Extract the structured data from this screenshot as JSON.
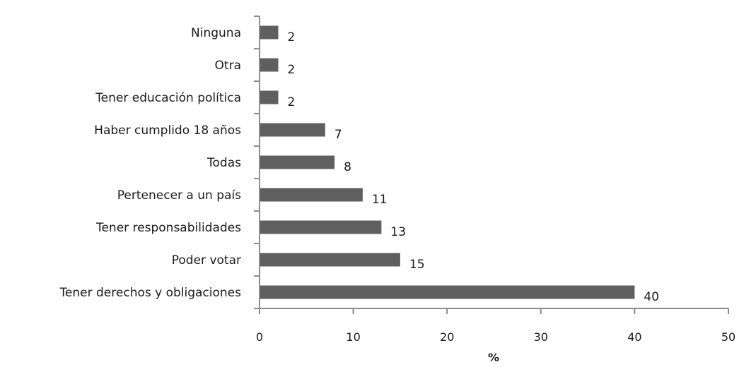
{
  "chart_data": {
    "type": "bar",
    "orientation": "horizontal",
    "categories": [
      "Ninguna",
      "Otra",
      "Tener educación política",
      "Haber cumplido 18 años",
      "Todas",
      "Pertenecer a un país",
      "Tener responsabilidades",
      "Poder votar",
      "Tener derechos y obligaciones"
    ],
    "values": [
      2,
      2,
      2,
      7,
      8,
      11,
      13,
      15,
      40
    ],
    "data_labels": [
      "2",
      "2",
      "2",
      "7",
      "8",
      "11",
      "13",
      "15",
      "40"
    ],
    "xlabel": "%",
    "ylabel": "",
    "xlim": [
      0,
      50
    ],
    "xticks": [
      0,
      10,
      20,
      30,
      40,
      50
    ],
    "xtick_labels": [
      "0",
      "10",
      "20",
      "30",
      "40",
      "50"
    ],
    "grid": false,
    "legend": "none",
    "bar_color": "#5f5f5f",
    "axis_color": "#8c8c8c"
  }
}
